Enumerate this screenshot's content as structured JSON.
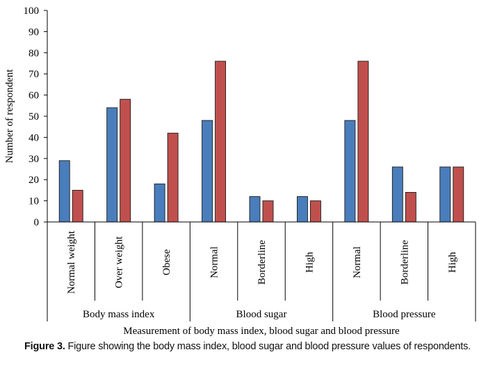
{
  "caption": {
    "label": "Figure 3.",
    "text": "Figure showing the body mass index, blood sugar and blood pressure values of respondents."
  },
  "chart_data": {
    "type": "bar",
    "xlabel": "Measurement of body mass index, blood sugar and blood pressure",
    "ylabel": "Number of respondent",
    "ylim": [
      0,
      100
    ],
    "yticks": [
      0,
      10,
      20,
      30,
      40,
      50,
      60,
      70,
      80,
      90,
      100
    ],
    "grid": false,
    "legend": "none",
    "colors": [
      "#4a7dbb",
      "#c0504d"
    ],
    "groups": [
      {
        "name": "Body mass index",
        "categories": [
          "Normal weight",
          "Over weight",
          "Obese"
        ]
      },
      {
        "name": "Blood sugar",
        "categories": [
          "Normal",
          "Borderline",
          "High"
        ]
      },
      {
        "name": "Blood pressure",
        "categories": [
          "Normal",
          "Borderline",
          "High"
        ]
      }
    ],
    "categories": [
      "Normal weight",
      "Over weight",
      "Obese",
      "Normal",
      "Borderline",
      "High",
      "Normal",
      "Borderline",
      "High"
    ],
    "series": [
      {
        "values": [
          29,
          54,
          18,
          48,
          12,
          12,
          48,
          26,
          26
        ]
      },
      {
        "values": [
          15,
          58,
          42,
          76,
          10,
          10,
          76,
          14,
          26
        ]
      }
    ]
  }
}
